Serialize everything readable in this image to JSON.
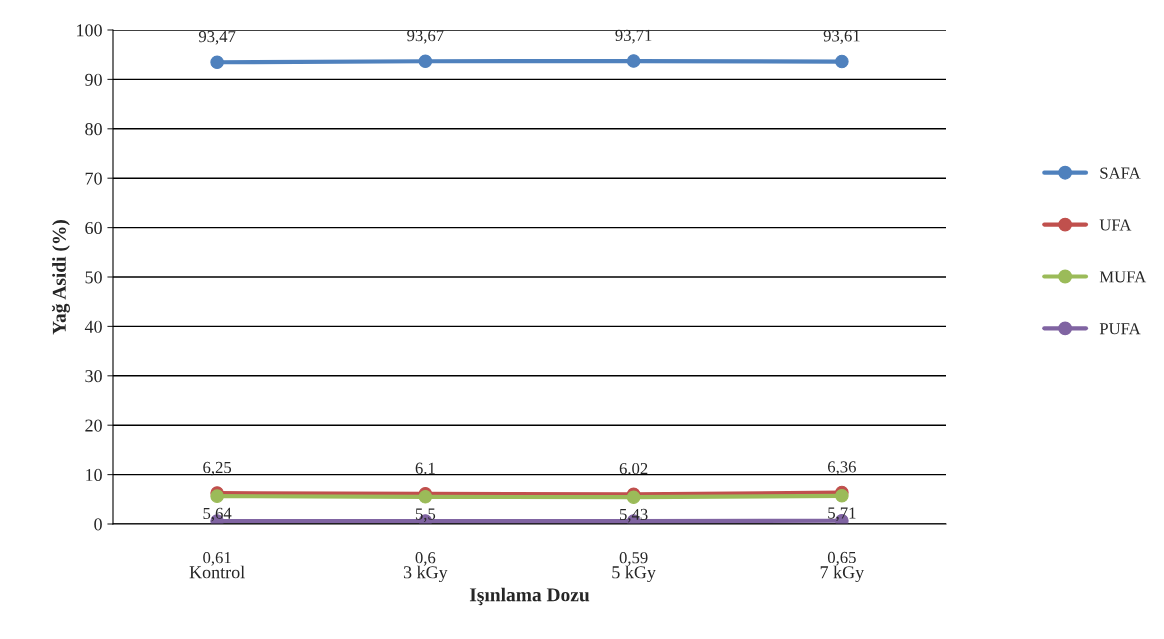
{
  "chart_data": {
    "type": "line",
    "xlabel": "Işınlama Dozu",
    "ylabel": "Yağ Asidi (%)",
    "categories": [
      "Kontrol",
      "3 kGy",
      "5 kGy",
      "7 kGy"
    ],
    "series": [
      {
        "name": "SAFA",
        "color": "#4f81bd",
        "values": [
          93.47,
          93.67,
          93.71,
          93.61
        ],
        "value_labels": [
          "93,47",
          "93,67",
          "93,71",
          "93,61"
        ]
      },
      {
        "name": "UFA",
        "color": "#c0504d",
        "values": [
          6.25,
          6.1,
          6.02,
          6.36
        ],
        "value_labels": [
          "6,25",
          "6.1",
          "6.02",
          "6,36"
        ]
      },
      {
        "name": "MUFA",
        "color": "#9bbb59",
        "values": [
          5.64,
          5.5,
          5.43,
          5.71
        ],
        "value_labels": [
          "5,64",
          "5,5",
          "5,43",
          "5,71"
        ]
      },
      {
        "name": "PUFA",
        "color": "#8064a2",
        "values": [
          0.61,
          0.6,
          0.59,
          0.65
        ],
        "value_labels": [
          "0,61",
          "0,6",
          "0,59",
          "0,65"
        ]
      }
    ],
    "ylim": [
      0,
      100
    ],
    "yticks": [
      0,
      10,
      20,
      30,
      40,
      50,
      60,
      70,
      80,
      90,
      100
    ],
    "grid": "y",
    "legend": "right",
    "marker": "circle",
    "line_style": "solid"
  }
}
